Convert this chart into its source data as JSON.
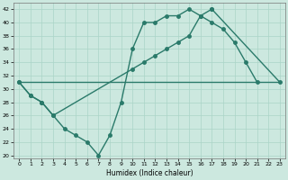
{
  "xlabel": "Humidex (Indice chaleur)",
  "background_color": "#cce8df",
  "line_color": "#2a7a6a",
  "grid_color": "#aad4c8",
  "xlim": [
    -0.5,
    23.5
  ],
  "ylim": [
    19.5,
    43
  ],
  "yticks": [
    20,
    22,
    24,
    26,
    28,
    30,
    32,
    34,
    36,
    38,
    40,
    42
  ],
  "xticks": [
    0,
    1,
    2,
    3,
    4,
    5,
    6,
    7,
    8,
    9,
    10,
    11,
    12,
    13,
    14,
    15,
    16,
    17,
    18,
    19,
    20,
    21,
    22,
    23
  ],
  "line1_x": [
    0,
    1,
    2,
    3,
    4,
    5,
    6,
    7,
    8,
    9,
    10,
    11,
    12,
    13,
    14,
    15,
    16,
    17,
    18,
    19,
    20,
    21
  ],
  "line1_y": [
    31,
    29,
    28,
    26,
    24,
    23,
    22,
    20,
    23,
    28,
    36,
    40,
    40,
    41,
    41,
    42,
    41,
    40,
    39,
    37,
    34,
    31
  ],
  "line2_x": [
    0,
    1,
    2,
    3,
    10,
    11,
    12,
    13,
    14,
    15,
    16,
    17,
    23
  ],
  "line2_y": [
    31,
    29,
    28,
    26,
    33,
    34,
    35,
    36,
    37,
    38,
    41,
    42,
    31
  ],
  "line2_markers_x": [
    0,
    1,
    2,
    3,
    10,
    11,
    12,
    13,
    14,
    15,
    16,
    17,
    23
  ],
  "line2_markers_y": [
    31,
    29,
    28,
    26,
    33,
    34,
    35,
    36,
    37,
    38,
    41,
    42,
    31
  ],
  "line3_x": [
    0,
    23
  ],
  "line3_y": [
    31,
    31
  ],
  "marker_size": 2.5,
  "linewidth": 1.0
}
